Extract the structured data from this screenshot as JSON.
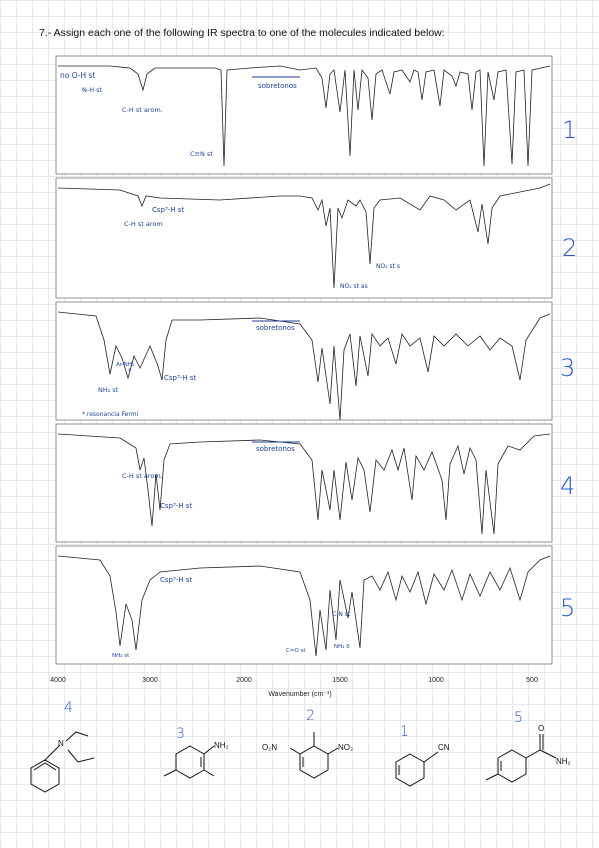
{
  "question": "7.- Assign each one of the following IR spectra to one of the molecules indicated below:",
  "x_axis": {
    "label": "Wavenumber (cm⁻¹)",
    "ticks": [
      "4000",
      "3000",
      "2000",
      "1500",
      "1000",
      "500"
    ]
  },
  "spectra": [
    {
      "answer": "1",
      "annotations": [
        "no O-H st",
        "N-H st",
        "C-H st arom.",
        "C≡N st",
        "sobretonos"
      ]
    },
    {
      "answer": "2",
      "annotations": [
        "Csp³-H st",
        "C-H st arom",
        "NO₂ st s",
        "NO₂ st as"
      ]
    },
    {
      "answer": "3",
      "annotations": [
        "sobretonos",
        "Ar-NH₂",
        "*",
        "Csp³-H st",
        "NH₂ st",
        "* resonancia Fermi"
      ]
    },
    {
      "answer": "4",
      "annotations": [
        "sobretonos",
        "C-H st arom.",
        "Csp³-H st"
      ]
    },
    {
      "answer": "5",
      "annotations": [
        "Csp³-H st",
        "C-N st",
        "C=O st",
        "NH₂ δ",
        "NH₂ st"
      ]
    }
  ],
  "molecules": [
    {
      "assigned": "4",
      "labels": [
        "N"
      ]
    },
    {
      "assigned": "3",
      "labels": [
        "NH₂"
      ]
    },
    {
      "assigned": "2",
      "labels": [
        "O₂N",
        "NO₂"
      ]
    },
    {
      "assigned": "1",
      "labels": [
        "CN"
      ]
    },
    {
      "assigned": "5",
      "labels": [
        "O",
        "NH₂"
      ]
    }
  ]
}
